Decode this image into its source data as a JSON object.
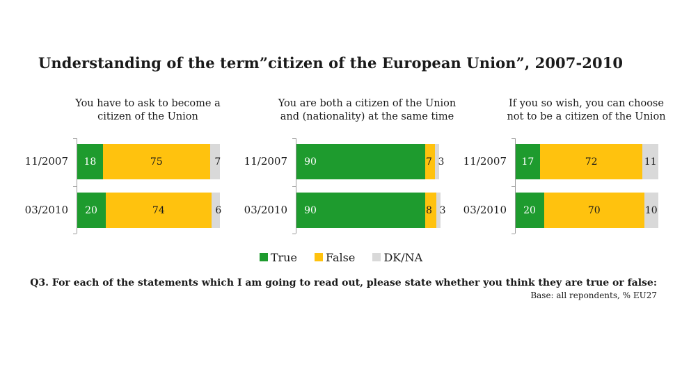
{
  "title": "Understanding of the term”citizen of the European Union”, 2007-2010",
  "legend": {
    "true_label": "True",
    "false_label": "False",
    "dk_label": "DK/NA"
  },
  "colors": {
    "true": "#1e9b2e",
    "false": "#ffc20e",
    "dk": "#d9d9d9",
    "true_text": "#ffffff",
    "false_text": "#1a1a1a",
    "dk_text": "#1a1a1a"
  },
  "note": {
    "question": "Q3. For each of the statements which I am going to read out, please state whether you think they are true or false:",
    "base": "Base: all repondents, % EU27"
  },
  "chart_data": [
    {
      "type": "bar",
      "stacked": true,
      "orientation": "horizontal",
      "title": "You have to ask to become a citizen of the Union",
      "title_lines": [
        "You have to ask to become a",
        "citizen of the Union"
      ],
      "categories": [
        "11/2007",
        "03/2010"
      ],
      "series": [
        {
          "name": "True",
          "values": [
            18,
            20
          ]
        },
        {
          "name": "False",
          "values": [
            75,
            74
          ]
        },
        {
          "name": "DK/NA",
          "values": [
            7,
            6
          ]
        }
      ],
      "xlim": [
        0,
        100
      ]
    },
    {
      "type": "bar",
      "stacked": true,
      "orientation": "horizontal",
      "title": "You are both a citizen of the Union and (nationality) at the same time",
      "title_lines": [
        "You are both a citizen of the Union",
        "and (nationality) at the same time"
      ],
      "categories": [
        "11/2007",
        "03/2010"
      ],
      "series": [
        {
          "name": "True",
          "values": [
            90,
            90
          ]
        },
        {
          "name": "False",
          "values": [
            7,
            8
          ]
        },
        {
          "name": "DK/NA",
          "values": [
            3,
            3
          ]
        }
      ],
      "xlim": [
        0,
        100
      ]
    },
    {
      "type": "bar",
      "stacked": true,
      "orientation": "horizontal",
      "title": "If you so wish, you can choose not to be a citizen of the Union",
      "title_lines": [
        "If you so wish, you can choose",
        "not to be a citizen of the Union"
      ],
      "categories": [
        "11/2007",
        "03/2010"
      ],
      "series": [
        {
          "name": "True",
          "values": [
            17,
            20
          ]
        },
        {
          "name": "False",
          "values": [
            72,
            70
          ]
        },
        {
          "name": "DK/NA",
          "values": [
            11,
            10
          ]
        }
      ],
      "xlim": [
        0,
        100
      ]
    }
  ]
}
